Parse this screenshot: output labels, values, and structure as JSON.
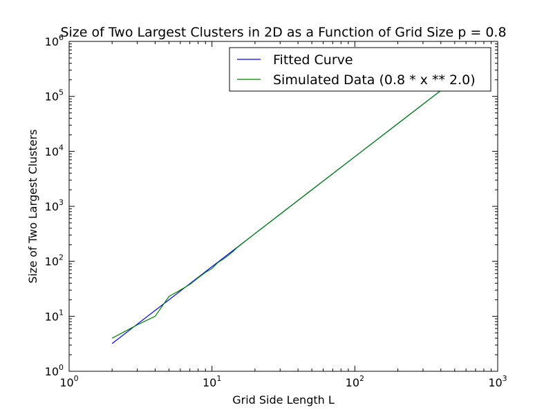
{
  "chart_data": {
    "type": "line",
    "title": "Size of Two Largest Clusters in 2D as a Function of Grid Size p = 0.8",
    "xlabel": "Grid Side Length L",
    "ylabel": "Size of Two Largest Clusters",
    "xscale": "log",
    "yscale": "log",
    "xlim": [
      1,
      1000
    ],
    "ylim": [
      1,
      1000000
    ],
    "x_ticks": [
      {
        "base": "10",
        "exp": "0",
        "value": 1
      },
      {
        "base": "10",
        "exp": "1",
        "value": 10
      },
      {
        "base": "10",
        "exp": "2",
        "value": 100
      },
      {
        "base": "10",
        "exp": "3",
        "value": 1000
      }
    ],
    "y_ticks": [
      {
        "base": "10",
        "exp": "0",
        "value": 1
      },
      {
        "base": "10",
        "exp": "1",
        "value": 10
      },
      {
        "base": "10",
        "exp": "2",
        "value": 100
      },
      {
        "base": "10",
        "exp": "3",
        "value": 1000
      },
      {
        "base": "10",
        "exp": "4",
        "value": 10000
      },
      {
        "base": "10",
        "exp": "5",
        "value": 100000
      },
      {
        "base": "10",
        "exp": "6",
        "value": 1000000
      }
    ],
    "legend_position": "top-right",
    "grid": false,
    "series": [
      {
        "name": "Fitted Curve",
        "color": "#0000ff",
        "x": [
          2,
          3,
          5,
          10,
          20,
          50,
          100,
          200,
          500
        ],
        "y": [
          3.2,
          7.2,
          20,
          80,
          320,
          2000,
          8000,
          32000,
          200000
        ]
      },
      {
        "name": "Simulated Data (0.8 * x ** 2.0)",
        "color": "#008000",
        "x": [
          2,
          3,
          4,
          5,
          6,
          7,
          8,
          9,
          10,
          11,
          12,
          13,
          14,
          15,
          17,
          20,
          25,
          30,
          50,
          100,
          200,
          500
        ],
        "y": [
          4,
          7,
          10,
          23,
          30,
          38,
          50,
          63,
          74,
          95,
          110,
          128,
          150,
          178,
          230,
          320,
          500,
          720,
          2000,
          8000,
          32000,
          200000
        ]
      }
    ]
  }
}
